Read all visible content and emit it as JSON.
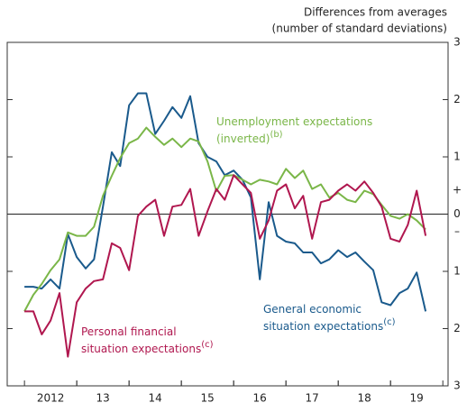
{
  "chart_data": {
    "type": "line",
    "y_label": [
      "Differences from averages",
      "(number of standard deviations)"
    ],
    "y_sign_labels": [
      "+",
      "–"
    ],
    "x": [
      2012,
      2012.17,
      2012.33,
      2012.5,
      2012.67,
      2012.83,
      2013,
      2013.17,
      2013.33,
      2013.5,
      2013.67,
      2013.83,
      2014,
      2014.17,
      2014.33,
      2014.5,
      2014.67,
      2014.83,
      2015,
      2015.17,
      2015.33,
      2015.5,
      2015.67,
      2015.83,
      2016,
      2016.17,
      2016.33,
      2016.5,
      2016.67,
      2016.83,
      2017,
      2017.17,
      2017.33,
      2017.5,
      2017.67,
      2017.83,
      2018,
      2018.17,
      2018.33,
      2018.5,
      2018.67,
      2018.83,
      2019,
      2019.17,
      2019.33,
      2019.5,
      2019.67
    ],
    "xlim": [
      2011.67,
      2020.1
    ],
    "xticks": [
      {
        "value": 2012.5,
        "label": "2012"
      },
      {
        "value": 2013.5,
        "label": "13"
      },
      {
        "value": 2014.5,
        "label": "14"
      },
      {
        "value": 2015.5,
        "label": "15"
      },
      {
        "value": 2016.5,
        "label": "16"
      },
      {
        "value": 2017.5,
        "label": "17"
      },
      {
        "value": 2018.5,
        "label": "18"
      },
      {
        "value": 2019.5,
        "label": "19"
      }
    ],
    "ylim": [
      -3,
      3
    ],
    "yticks": [
      3,
      2,
      1,
      0,
      {
        "value": -1,
        "label": "1"
      },
      {
        "value": -2,
        "label": "2"
      },
      {
        "value": -3,
        "label": "3"
      }
    ],
    "series": [
      {
        "name_lines": [
          "General economic",
          "situation expectations"
        ],
        "note": "(c)",
        "color": "#1a5a8c",
        "values": [
          -1.27,
          -1.27,
          -1.3,
          -1.14,
          -1.3,
          -0.35,
          -0.75,
          -0.95,
          -0.79,
          0.13,
          1.08,
          0.84,
          1.9,
          2.11,
          2.11,
          1.4,
          1.63,
          1.87,
          1.68,
          2.06,
          1.24,
          1.0,
          0.92,
          0.68,
          0.76,
          0.6,
          0.29,
          -1.14,
          0.21,
          -0.38,
          -0.48,
          -0.51,
          -0.67,
          -0.67,
          -0.86,
          -0.79,
          -0.63,
          -0.75,
          -0.67,
          -0.83,
          -0.98,
          -1.54,
          -1.59,
          -1.38,
          -1.3,
          -1.02,
          -1.7
        ]
      },
      {
        "name_lines": [
          "Unemployment expectations",
          "(inverted)"
        ],
        "note": "(b)",
        "color": "#7ab648",
        "values": [
          -1.7,
          -1.41,
          -1.22,
          -0.98,
          -0.79,
          -0.32,
          -0.38,
          -0.38,
          -0.22,
          0.32,
          0.67,
          0.98,
          1.24,
          1.32,
          1.51,
          1.35,
          1.21,
          1.32,
          1.17,
          1.32,
          1.27,
          0.92,
          0.4,
          0.67,
          0.68,
          0.6,
          0.52,
          0.6,
          0.57,
          0.52,
          0.79,
          0.63,
          0.76,
          0.44,
          0.52,
          0.29,
          0.37,
          0.25,
          0.21,
          0.41,
          0.35,
          0.16,
          -0.03,
          -0.08,
          0,
          -0.11,
          -0.27
        ]
      },
      {
        "name_lines": [
          "Personal financial",
          "situation expectations"
        ],
        "note": "(c)",
        "color": "#b0174f",
        "values": [
          -1.7,
          -1.7,
          -2.1,
          -1.86,
          -1.38,
          -2.49,
          -1.54,
          -1.3,
          -1.17,
          -1.14,
          -0.51,
          -0.59,
          -0.98,
          -0.03,
          0.13,
          0.25,
          -0.38,
          0.13,
          0.16,
          0.44,
          -0.38,
          0.05,
          0.44,
          0.25,
          0.68,
          0.52,
          0.37,
          -0.43,
          -0.11,
          0.41,
          0.52,
          0.1,
          0.32,
          -0.43,
          0.21,
          0.25,
          0.41,
          0.52,
          0.41,
          0.57,
          0.37,
          0.13,
          -0.43,
          -0.48,
          -0.19,
          0.41,
          -0.38
        ]
      }
    ]
  }
}
